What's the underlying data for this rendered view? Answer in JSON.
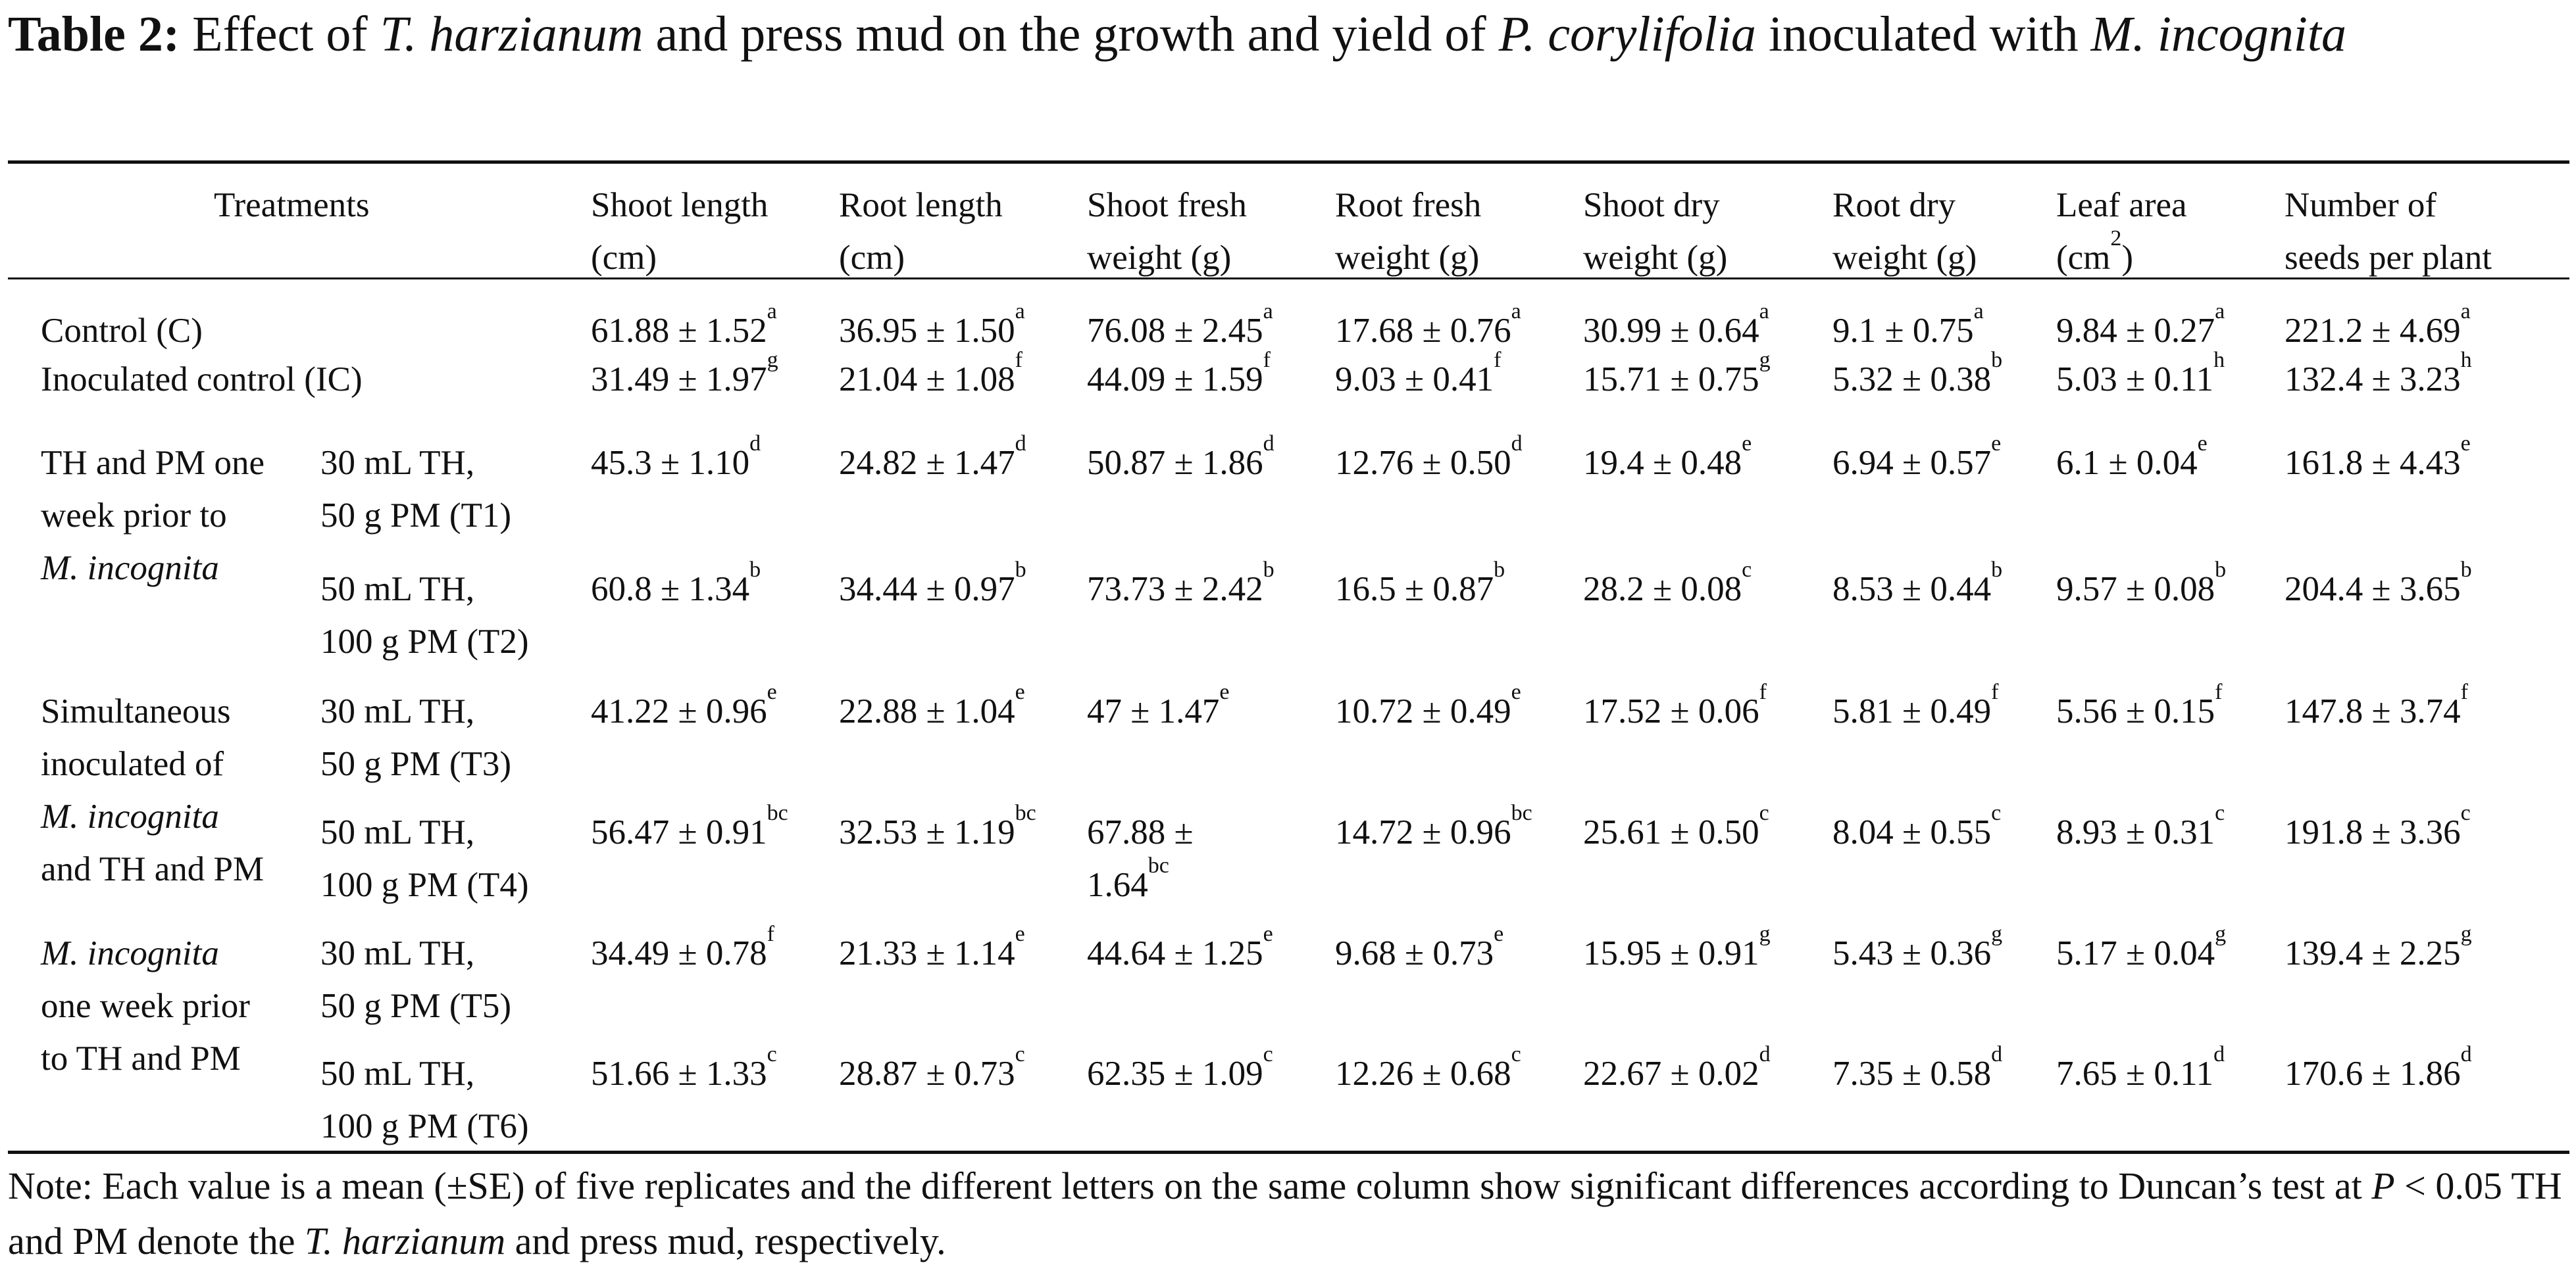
{
  "caption": {
    "label": "Table 2:",
    "parts": [
      {
        "t": " Effect of ",
        "i": false
      },
      {
        "t": "T. harzianum",
        "i": true
      },
      {
        "t": " and press mud on the growth and yield of ",
        "i": false
      },
      {
        "t": "P. corylifolia",
        "i": true
      },
      {
        "t": " inoculated with ",
        "i": false
      },
      {
        "t": "M. incognita",
        "i": true
      }
    ]
  },
  "headers": [
    {
      "l1": "Treatments",
      "l2": ""
    },
    {
      "l1": "Shoot length",
      "l2": "(cm)"
    },
    {
      "l1": "Root length",
      "l2": "(cm)"
    },
    {
      "l1": "Shoot fresh",
      "l2": "weight (g)"
    },
    {
      "l1": "Root fresh",
      "l2": "weight (g)"
    },
    {
      "l1": "Shoot dry",
      "l2": "weight (g)"
    },
    {
      "l1": "Root dry",
      "l2": "weight (g)"
    },
    {
      "l1": "Leaf area",
      "l2": "(cm",
      "l2_sup": "2",
      "l2_after": ")"
    },
    {
      "l1": "Number of",
      "l2": "seeds per plant"
    }
  ],
  "groups": [
    {
      "label": "Control (C)",
      "lines": [
        {
          "t": "Control (C)",
          "i": false
        }
      ]
    },
    {
      "label": "Inoculated control  (IC)",
      "lines": [
        {
          "t": "Inoculated control  (IC)",
          "i": false
        }
      ]
    },
    {
      "label": "TH and PM one week prior to M. incognita",
      "lines": [
        {
          "t": "TH and PM one",
          "i": false
        },
        {
          "t": "week prior to",
          "i": false
        },
        {
          "t": "M. incognita",
          "i": true
        }
      ]
    },
    {
      "label": "Simultaneous inoculated of M. incognita and TH and PM",
      "lines": [
        {
          "t": "Simultaneous",
          "i": false
        },
        {
          "t": "inoculated of",
          "i": false
        },
        {
          "t": "M. incognita",
          "i": true
        },
        {
          "t": "and TH and PM",
          "i": false
        }
      ]
    },
    {
      "label": "M. incognita one week prior to TH and PM",
      "lines": [
        {
          "t": "M. incognita",
          "i": true
        },
        {
          "t": "one week prior",
          "i": false
        },
        {
          "t": "to TH and PM",
          "i": false
        }
      ]
    }
  ],
  "rows": [
    {
      "sub1": "",
      "sub2": "",
      "cells": [
        {
          "v": "61.88 ± 1.52",
          "s": "a"
        },
        {
          "v": "36.95 ± 1.50",
          "s": "a"
        },
        {
          "v": "76.08 ± 2.45",
          "s": "a"
        },
        {
          "v": "17.68 ± 0.76",
          "s": "a"
        },
        {
          "v": "30.99 ± 0.64",
          "s": "a"
        },
        {
          "v": "9.1 ± 0.75",
          "s": "a"
        },
        {
          "v": "9.84 ± 0.27",
          "s": "a"
        },
        {
          "v": "221.2 ± 4.69",
          "s": "a"
        }
      ]
    },
    {
      "sub1": "",
      "sub2": "",
      "cells": [
        {
          "v": "31.49 ± 1.97",
          "s": "g"
        },
        {
          "v": "21.04 ± 1.08",
          "s": "f"
        },
        {
          "v": "44.09 ± 1.59",
          "s": "f"
        },
        {
          "v": "9.03 ± 0.41",
          "s": "f"
        },
        {
          "v": "15.71 ± 0.75",
          "s": "g"
        },
        {
          "v": "5.32 ± 0.38",
          "s": "b"
        },
        {
          "v": "5.03 ± 0.11",
          "s": "h"
        },
        {
          "v": "132.4 ± 3.23",
          "s": "h"
        }
      ]
    },
    {
      "sub1": "30 mL TH,",
      "sub2": "50 g PM (T1)",
      "cells": [
        {
          "v": "45.3 ± 1.10",
          "s": "d"
        },
        {
          "v": "24.82 ± 1.47",
          "s": "d"
        },
        {
          "v": "50.87 ± 1.86",
          "s": "d"
        },
        {
          "v": "12.76 ± 0.50",
          "s": "d"
        },
        {
          "v": "19.4 ± 0.48",
          "s": "e"
        },
        {
          "v": "6.94 ± 0.57",
          "s": "e"
        },
        {
          "v": "6.1 ± 0.04",
          "s": "e"
        },
        {
          "v": "161.8 ± 4.43",
          "s": "e"
        }
      ]
    },
    {
      "sub1": "50 mL TH,",
      "sub2": "100 g PM (T2)",
      "cells": [
        {
          "v": "60.8 ± 1.34",
          "s": "b"
        },
        {
          "v": "34.44 ± 0.97",
          "s": "b"
        },
        {
          "v": "73.73 ± 2.42",
          "s": "b"
        },
        {
          "v": "16.5 ± 0.87",
          "s": "b"
        },
        {
          "v": "28.2 ± 0.08",
          "s": "c"
        },
        {
          "v": "8.53 ± 0.44",
          "s": "b"
        },
        {
          "v": "9.57 ± 0.08",
          "s": "b"
        },
        {
          "v": "204.4 ± 3.65",
          "s": "b"
        }
      ]
    },
    {
      "sub1": "30 mL TH,",
      "sub2": "50 g PM (T3)",
      "cells": [
        {
          "v": "41.22 ± 0.96",
          "s": "e"
        },
        {
          "v": "22.88 ± 1.04",
          "s": "e"
        },
        {
          "v": "47 ± 1.47",
          "s": "e"
        },
        {
          "v": "10.72 ± 0.49",
          "s": "e"
        },
        {
          "v": "17.52 ± 0.06",
          "s": "f"
        },
        {
          "v": "5.81 ± 0.49",
          "s": "f"
        },
        {
          "v": "5.56 ± 0.15",
          "s": "f"
        },
        {
          "v": "147.8 ± 3.74",
          "s": "f"
        }
      ]
    },
    {
      "sub1": "50 mL TH,",
      "sub2": "100 g PM (T4)",
      "cells": [
        {
          "v": "56.47 ± 0.91",
          "s": "bc"
        },
        {
          "v": "32.53 ± 1.19",
          "s": "bc"
        },
        {
          "v": "67.88 ± 1.64",
          "s": "bc"
        },
        {
          "v": "14.72 ± 0.96",
          "s": "bc"
        },
        {
          "v": "25.61 ± 0.50",
          "s": "c"
        },
        {
          "v": "8.04 ± 0.55",
          "s": "c"
        },
        {
          "v": "8.93 ± 0.31",
          "s": "c"
        },
        {
          "v": "191.8 ± 3.36",
          "s": "c"
        }
      ]
    },
    {
      "sub1": "30 mL TH,",
      "sub2": "50 g PM (T5)",
      "cells": [
        {
          "v": "34.49 ± 0.78",
          "s": "f"
        },
        {
          "v": "21.33 ± 1.14",
          "s": "e"
        },
        {
          "v": "44.64 ± 1.25",
          "s": "e"
        },
        {
          "v": "9.68 ± 0.73",
          "s": "e"
        },
        {
          "v": "15.95 ± 0.91",
          "s": "g"
        },
        {
          "v": "5.43 ± 0.36",
          "s": "g"
        },
        {
          "v": "5.17 ± 0.04",
          "s": "g"
        },
        {
          "v": "139.4 ± 2.25",
          "s": "g"
        }
      ]
    },
    {
      "sub1": "50 mL TH,",
      "sub2": "100 g PM (T6)",
      "cells": [
        {
          "v": "51.66 ± 1.33",
          "s": "c"
        },
        {
          "v": "28.87 ± 0.73",
          "s": "c"
        },
        {
          "v": "62.35 ± 1.09",
          "s": "c"
        },
        {
          "v": "12.26 ± 0.68",
          "s": "c"
        },
        {
          "v": "22.67 ± 0.02",
          "s": "d"
        },
        {
          "v": "7.35 ± 0.58",
          "s": "d"
        },
        {
          "v": "7.65 ± 0.11",
          "s": "d"
        },
        {
          "v": "170.6 ± 1.86",
          "s": "d"
        }
      ]
    }
  ],
  "note": [
    {
      "t": "Note: Each value is a mean (±SE) of five replicates and the different letters on the same column show significant differences according to Duncan’s test at ",
      "i": false
    },
    {
      "t": "P",
      "i": true
    },
    {
      "t": " < 0.05 TH and PM denote the ",
      "i": false
    },
    {
      "t": "T. harzianum",
      "i": true
    },
    {
      "t": " and press mud, respectively.",
      "i": false
    }
  ]
}
